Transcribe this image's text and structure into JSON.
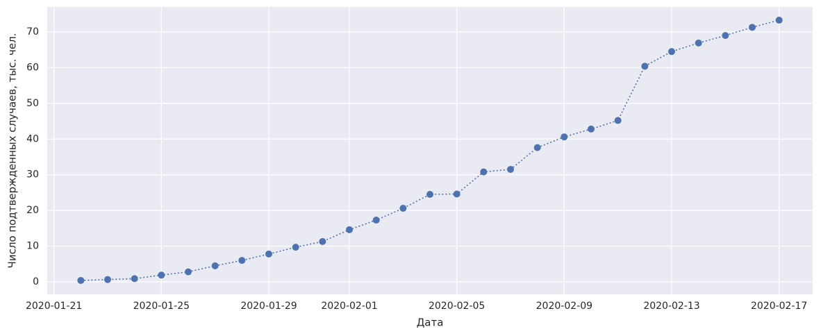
{
  "chart_data": {
    "type": "line",
    "y_label": "Число подтвержденных случаев, тыс. чел.",
    "x_label": "Дата",
    "x": [
      "2020-01-22",
      "2020-01-23",
      "2020-01-24",
      "2020-01-25",
      "2020-01-26",
      "2020-01-27",
      "2020-01-28",
      "2020-01-29",
      "2020-01-30",
      "2020-01-31",
      "2020-02-01",
      "2020-02-02",
      "2020-02-03",
      "2020-02-04",
      "2020-02-05",
      "2020-02-06",
      "2020-02-07",
      "2020-02-08",
      "2020-02-09",
      "2020-02-10",
      "2020-02-11",
      "2020-02-12",
      "2020-02-13",
      "2020-02-14",
      "2020-02-15",
      "2020-02-16",
      "2020-02-17"
    ],
    "values": [
      0.4,
      0.65,
      0.9,
      1.9,
      2.8,
      4.5,
      6.0,
      7.8,
      9.7,
      11.3,
      14.6,
      17.3,
      20.6,
      24.5,
      24.6,
      30.8,
      31.5,
      37.6,
      40.6,
      42.8,
      45.2,
      60.4,
      64.5,
      66.9,
      69.0,
      71.3,
      73.3
    ],
    "color": "#4c72b0",
    "line_style": "dotted",
    "markers": true,
    "xlim": [
      "2020-01-20T18:00",
      "2020-02-18T06:00"
    ],
    "xticks": [
      "2020-01-21",
      "2020-01-25",
      "2020-01-29",
      "2020-02-01",
      "2020-02-05",
      "2020-02-09",
      "2020-02-13",
      "2020-02-17"
    ],
    "ylim": [
      -3.5,
      77
    ],
    "yticks": [
      0,
      10,
      20,
      30,
      40,
      50,
      60,
      70
    ],
    "grid": true
  }
}
